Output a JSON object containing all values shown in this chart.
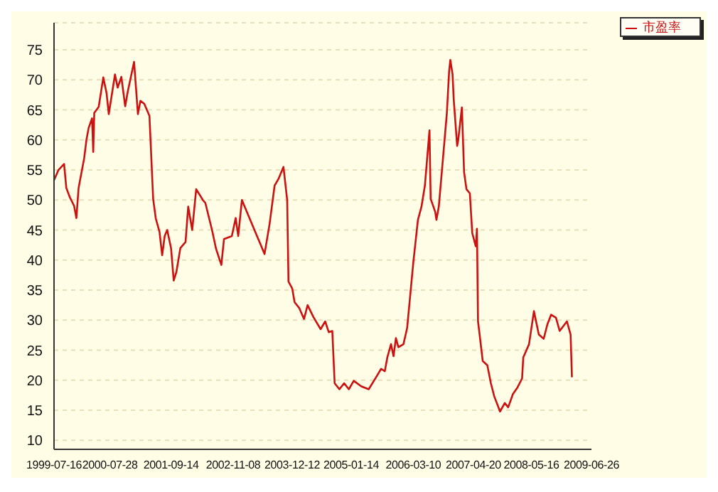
{
  "chart_data": {
    "type": "line",
    "x": [
      "1999-07-16",
      "1999-08-15",
      "1999-09-22",
      "1999-10-07",
      "1999-10-30",
      "1999-11-29",
      "1999-12-14",
      "1999-12-29",
      "2000-02-05",
      "2000-02-20",
      "2000-03-06",
      "2000-03-29",
      "2000-04-06",
      "2000-04-13",
      "2000-05-13",
      "2000-06-13",
      "2000-07-05",
      "2000-07-20",
      "2000-08-31",
      "2000-09-18",
      "2000-10-13",
      "2000-11-08",
      "2000-11-25",
      "2001-01-07",
      "2001-02-02",
      "2001-02-19",
      "2001-03-17",
      "2001-04-21",
      "2001-05-16",
      "2001-06-03",
      "2001-06-28",
      "2001-07-16",
      "2001-08-02",
      "2001-08-19",
      "2001-09-14",
      "2001-10-02",
      "2001-10-20",
      "2001-11-16",
      "2001-12-21",
      "2002-01-08",
      "2002-02-04",
      "2002-03-03",
      "2002-04-17",
      "2002-05-04",
      "2002-06-18",
      "2002-07-15",
      "2002-08-20",
      "2002-09-07",
      "2002-10-30",
      "2002-11-25",
      "2002-12-12",
      "2003-01-06",
      "2003-02-09",
      "2003-04-18",
      "2003-05-14",
      "2003-06-08",
      "2003-07-12",
      "2003-08-15",
      "2003-09-10",
      "2003-10-14",
      "2003-11-08",
      "2003-11-17",
      "2003-12-12",
      "2003-12-28",
      "2004-01-29",
      "2004-03-01",
      "2004-03-25",
      "2004-05-04",
      "2004-06-21",
      "2004-07-22",
      "2004-08-15",
      "2004-09-08",
      "2004-09-24",
      "2004-10-26",
      "2004-11-27",
      "2004-12-29",
      "2005-01-31",
      "2005-03-22",
      "2005-05-12",
      "2005-07-01",
      "2005-08-04",
      "2005-08-29",
      "2005-09-15",
      "2005-10-10",
      "2005-10-27",
      "2005-11-12",
      "2005-11-29",
      "2006-01-02",
      "2006-01-27",
      "2006-03-10",
      "2006-04-10",
      "2006-05-04",
      "2006-05-27",
      "2006-06-27",
      "2006-07-05",
      "2006-08-05",
      "2006-08-13",
      "2006-08-29",
      "2006-09-29",
      "2006-10-22",
      "2006-11-07",
      "2006-11-15",
      "2006-11-30",
      "2006-12-08",
      "2006-12-31",
      "2007-01-08",
      "2007-02-01",
      "2007-02-16",
      "2007-03-04",
      "2007-03-27",
      "2007-04-12",
      "2007-05-06",
      "2007-05-14",
      "2007-05-21",
      "2007-05-29",
      "2007-06-22",
      "2007-07-23",
      "2007-08-16",
      "2007-09-08",
      "2007-10-17",
      "2007-11-18",
      "2007-12-11",
      "2008-01-12",
      "2008-02-12",
      "2008-03-14",
      "2008-03-22",
      "2008-04-30",
      "2008-06-02",
      "2008-07-05",
      "2008-08-07",
      "2008-09-01",
      "2008-09-26",
      "2008-10-29",
      "2008-11-23",
      "2009-01-11",
      "2009-02-05",
      "2009-02-14"
    ],
    "series": [
      {
        "name": "市盈率",
        "color": "#cc1111",
        "values": [
          53.3,
          55,
          56,
          52,
          50.5,
          49,
          47,
          52,
          57,
          60,
          62,
          63.6,
          58,
          64.5,
          65.5,
          70.4,
          67.8,
          64.3,
          70.9,
          68.7,
          70.5,
          65.6,
          68,
          73,
          64.3,
          66.5,
          66,
          64,
          50.2,
          46.9,
          44.7,
          40.8,
          44,
          45,
          42,
          36.6,
          38,
          42,
          43,
          48.9,
          45,
          51.8,
          50,
          49.5,
          45,
          41.9,
          39.2,
          43.5,
          44,
          47,
          44,
          50,
          48,
          44,
          42.5,
          41,
          46,
          52.4,
          53.5,
          55.5,
          50,
          36.4,
          35.3,
          33,
          32,
          30.2,
          32.5,
          30.5,
          28.5,
          29.8,
          28,
          28.2,
          19.5,
          18.5,
          19.5,
          18.5,
          19.9,
          19,
          18.5,
          20.5,
          21.9,
          21.5,
          23.8,
          26,
          24,
          27,
          25.5,
          26,
          28.7,
          39.7,
          46.7,
          48.9,
          52.4,
          61.6,
          50.2,
          48,
          46.7,
          48.9,
          57.7,
          64.3,
          71.5,
          73.3,
          70.9,
          66.7,
          59,
          60.1,
          65.4,
          54.6,
          51.8,
          51.1,
          44.5,
          42.3,
          45.2,
          29.8,
          28.2,
          23.2,
          22.5,
          19.5,
          17.3,
          14.8,
          16.2,
          15.5,
          17.7,
          18.8,
          20.3,
          23.8,
          26,
          31.5,
          27.6,
          26.9,
          29.3,
          30.9,
          30.4,
          28.2,
          29.8,
          27.6,
          20.5
        ]
      }
    ],
    "xlim": [
      "1999-07-16",
      "2009-06-26"
    ],
    "xticks": [
      "1999-07-16",
      "2000-07-28",
      "2001-09-14",
      "2002-11-08",
      "2003-12-12",
      "2005-01-14",
      "2006-03-10",
      "2007-04-20",
      "2008-05-16",
      "2009-06-26"
    ],
    "ylim": [
      8.5,
      79.5
    ],
    "yticks": [
      10,
      15,
      20,
      25,
      30,
      35,
      40,
      45,
      50,
      55,
      60,
      65,
      70,
      75
    ],
    "grid": "y",
    "legend": "top right"
  }
}
